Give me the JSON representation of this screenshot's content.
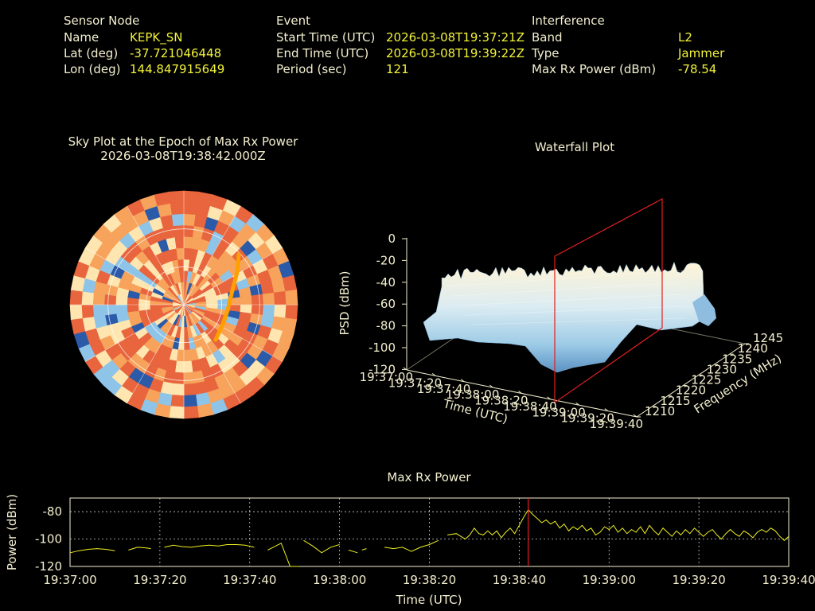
{
  "header": {
    "sensor": {
      "heading": "Sensor Node",
      "rows": [
        {
          "label": "Name",
          "value": "KEPK_SN"
        },
        {
          "label": "Lat (deg)",
          "value": "-37.721046448"
        },
        {
          "label": "Lon (deg)",
          "value": "144.847915649"
        }
      ]
    },
    "event": {
      "heading": "Event",
      "rows": [
        {
          "label": "Start Time (UTC)",
          "value": "2026-03-08T19:37:21Z"
        },
        {
          "label": "End Time (UTC)",
          "value": "2026-03-08T19:39:22Z"
        },
        {
          "label": "Period (sec)",
          "value": "121"
        }
      ]
    },
    "interference": {
      "heading": "Interference",
      "rows": [
        {
          "label": "Band",
          "value": "L2"
        },
        {
          "label": "Type",
          "value": "Jammer"
        },
        {
          "label": "Max Rx Power (dBm)",
          "value": "-78.54"
        }
      ]
    }
  },
  "colors": {
    "text": "#f3efcf",
    "value": "#f2f23a",
    "line": "#f0f020",
    "marker": "#e02020",
    "grid": "#ffffff"
  },
  "chart_data": [
    {
      "type": "heatmap",
      "title": "Sky Plot at the Epoch of Max Rx Power",
      "subtitle": "2026-03-08T19:38:42.000Z",
      "projection": "polar",
      "colormap": [
        "#2b5aa8",
        "#8ec4e8",
        "#ffe6b0",
        "#f7a35c",
        "#e8653e"
      ],
      "track_color": "#ffa000"
    },
    {
      "type": "area",
      "title": "Waterfall Plot",
      "zlabel": "PSD (dBm)",
      "xlabel": "Time (UTC)",
      "ylabel": "Frequency (MHz)",
      "zticks": [
        "0",
        "-20",
        "-40",
        "-60",
        "-80",
        "-100",
        "-120"
      ],
      "time_ticks": [
        "19:37:00",
        "19:37:20",
        "19:37:40",
        "19:38:00",
        "19:38:20",
        "19:38:40",
        "19:39:00",
        "19:39:20",
        "19:39:40"
      ],
      "freq_ticks": [
        "1210",
        "1215",
        "1220",
        "1225",
        "1230",
        "1235",
        "1240",
        "1245"
      ],
      "zlim": [
        -120,
        0
      ],
      "flim": [
        1210,
        1245
      ],
      "max_epoch": "19:38:42"
    },
    {
      "type": "line",
      "title": "Max Rx Power",
      "xlabel": "Time (UTC)",
      "ylabel": "Power (dBm)",
      "xticks": [
        "19:37:00",
        "19:37:20",
        "19:37:40",
        "19:38:00",
        "19:38:20",
        "19:38:40",
        "19:39:00",
        "19:39:20",
        "19:39:40"
      ],
      "yticks": [
        "-80",
        "-100",
        "-120"
      ],
      "xlim_sec": [
        0,
        160
      ],
      "ylim": [
        -120,
        -70
      ],
      "grid": true,
      "max_marker_sec": 102,
      "series": [
        {
          "segments": [
            [
              [
                0,
                -110
              ],
              [
                2,
                -108.5
              ],
              [
                4,
                -107.5
              ],
              [
                6,
                -107
              ],
              [
                8,
                -107.5
              ],
              [
                10,
                -108.5
              ]
            ],
            [
              [
                13,
                -108
              ],
              [
                15,
                -106
              ],
              [
                17,
                -106.5
              ],
              [
                18,
                -107
              ]
            ],
            [
              [
                21,
                -106
              ],
              [
                23,
                -104.5
              ],
              [
                25,
                -105.5
              ],
              [
                27,
                -106
              ],
              [
                29,
                -105
              ],
              [
                31,
                -104.5
              ],
              [
                33,
                -105
              ],
              [
                35,
                -104
              ],
              [
                37,
                -104
              ],
              [
                39,
                -104.5
              ],
              [
                41,
                -106
              ]
            ],
            [
              [
                44,
                -108
              ],
              [
                47,
                -103
              ],
              [
                49,
                -120
              ],
              [
                51,
                -120
              ]
            ],
            [
              [
                52,
                -101
              ],
              [
                54,
                -105
              ],
              [
                56,
                -110
              ],
              [
                58,
                -106
              ],
              [
                60,
                -104
              ]
            ],
            [
              [
                62,
                -108
              ],
              [
                64,
                -110
              ]
            ],
            [
              [
                65,
                -108
              ],
              [
                66,
                -107
              ]
            ],
            [
              [
                70,
                -106
              ],
              [
                72,
                -107
              ],
              [
                74,
                -106
              ],
              [
                76,
                -109
              ],
              [
                78,
                -106
              ],
              [
                80,
                -104
              ],
              [
                82,
                -101
              ]
            ],
            [
              [
                84,
                -97
              ],
              [
                86,
                -96
              ],
              [
                87,
                -98
              ],
              [
                88,
                -100
              ],
              [
                89,
                -97
              ],
              [
                90,
                -92
              ],
              [
                91,
                -96
              ],
              [
                92,
                -97
              ],
              [
                93,
                -94
              ],
              [
                94,
                -97
              ],
              [
                95,
                -94
              ],
              [
                96,
                -99
              ],
              [
                97,
                -95
              ],
              [
                98,
                -92
              ],
              [
                99,
                -96
              ],
              [
                100,
                -90
              ],
              [
                101,
                -84
              ],
              [
                102,
                -78.54
              ],
              [
                103,
                -82
              ],
              [
                104,
                -85
              ],
              [
                105,
                -88
              ],
              [
                106,
                -86
              ],
              [
                107,
                -89
              ],
              [
                108,
                -87
              ],
              [
                109,
                -92
              ],
              [
                110,
                -89
              ],
              [
                111,
                -94
              ],
              [
                112,
                -91
              ],
              [
                113,
                -93
              ],
              [
                114,
                -90
              ],
              [
                115,
                -94
              ],
              [
                116,
                -92
              ],
              [
                117,
                -97
              ],
              [
                118,
                -95
              ],
              [
                119,
                -91
              ],
              [
                120,
                -93
              ],
              [
                121,
                -90
              ],
              [
                122,
                -95
              ],
              [
                123,
                -92
              ],
              [
                124,
                -96
              ],
              [
                125,
                -93
              ],
              [
                126,
                -95
              ],
              [
                127,
                -91
              ],
              [
                128,
                -96
              ],
              [
                129,
                -90
              ],
              [
                130,
                -94
              ],
              [
                131,
                -97
              ],
              [
                132,
                -92
              ],
              [
                133,
                -95
              ],
              [
                134,
                -98
              ],
              [
                135,
                -94
              ],
              [
                136,
                -97
              ],
              [
                137,
                -93
              ],
              [
                138,
                -96
              ],
              [
                139,
                -92
              ],
              [
                140,
                -95
              ],
              [
                141,
                -98
              ],
              [
                142,
                -95
              ],
              [
                143,
                -93
              ],
              [
                144,
                -97
              ],
              [
                145,
                -100
              ],
              [
                146,
                -96
              ],
              [
                147,
                -93
              ],
              [
                148,
                -96
              ],
              [
                149,
                -98
              ],
              [
                150,
                -94
              ],
              [
                151,
                -96
              ],
              [
                152,
                -99
              ],
              [
                153,
                -95
              ],
              [
                154,
                -93
              ],
              [
                155,
                -95
              ],
              [
                156,
                -92
              ],
              [
                157,
                -94
              ],
              [
                158,
                -98
              ],
              [
                159,
                -101
              ],
              [
                160,
                -98
              ]
            ]
          ]
        }
      ]
    }
  ]
}
